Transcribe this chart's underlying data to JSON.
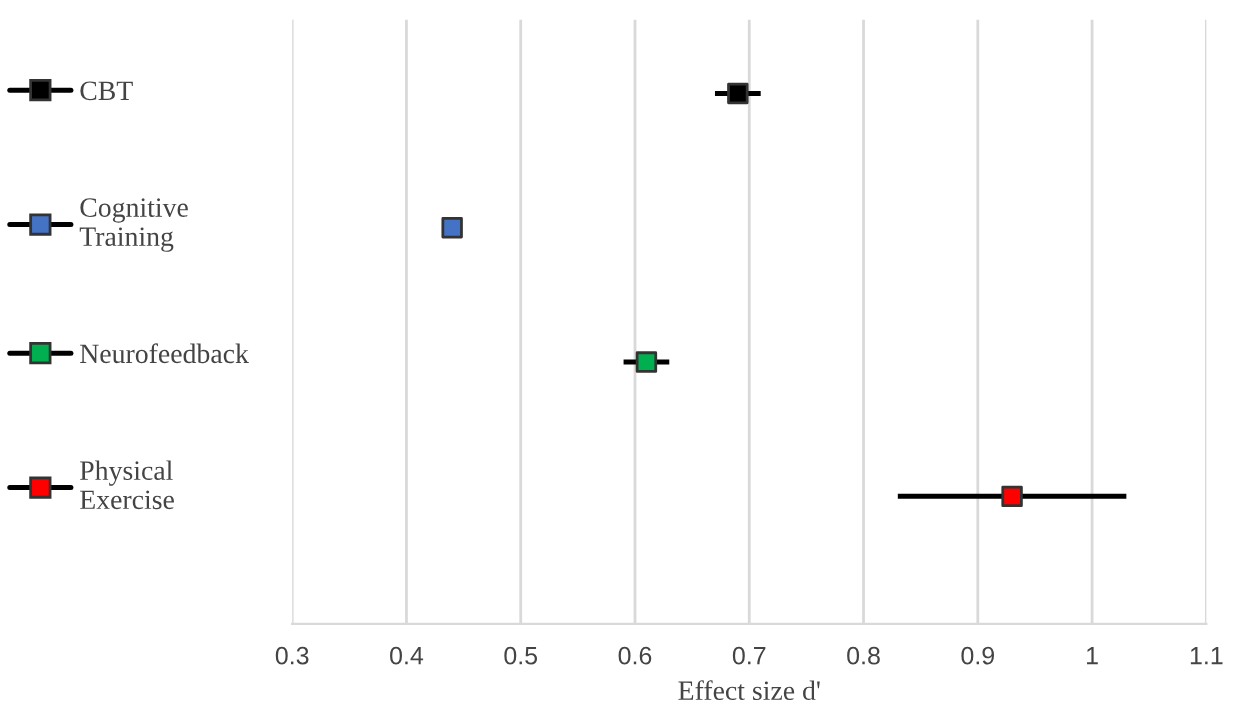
{
  "chart_data": {
    "type": "scatter",
    "orientation": "horizontal",
    "xlabel": "Effect size d'",
    "categories": [
      null,
      null,
      null,
      null
    ],
    "series": [
      {
        "name": "CBT",
        "color": "#000000",
        "values": [
          0.69,
          null,
          null,
          null
        ],
        "errors": [
          0.02,
          null,
          null,
          null
        ]
      },
      {
        "name": "Cognitive Training",
        "color": "#4472c4",
        "values": [
          null,
          0.44,
          null,
          null
        ],
        "errors": [
          null,
          null,
          null,
          null
        ]
      },
      {
        "name": "Neurofeedback",
        "color": "#00b050",
        "values": [
          null,
          null,
          0.61,
          null
        ],
        "errors": [
          null,
          null,
          0.02,
          null
        ]
      },
      {
        "name": "Physical Exercise",
        "color": "#ff0000",
        "values": [
          null,
          null,
          null,
          0.93
        ],
        "errors": [
          null,
          null,
          null,
          0.1
        ]
      }
    ],
    "xlim": [
      0.3,
      1.1
    ],
    "xticks": [
      0.3,
      0.4,
      0.5,
      0.6,
      0.7,
      0.8,
      0.9,
      1,
      1.1
    ],
    "grid": "x",
    "legend": "left",
    "marker": "square",
    "tick_labels": "x"
  }
}
